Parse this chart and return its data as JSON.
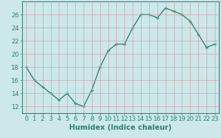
{
  "x": [
    0,
    1,
    2,
    3,
    4,
    5,
    6,
    7,
    8,
    9,
    10,
    11,
    12,
    13,
    14,
    15,
    16,
    17,
    18,
    19,
    20,
    21,
    22,
    23
  ],
  "y": [
    18,
    16,
    15,
    14,
    13,
    14,
    12.5,
    12,
    14.5,
    18,
    20.5,
    21.5,
    21.5,
    24,
    26,
    26,
    25.5,
    27,
    26.5,
    26,
    25,
    23,
    21,
    21.5
  ],
  "line_color": "#2e7d6e",
  "marker": "+",
  "marker_color": "#2e7d6e",
  "bg_color": "#cce8eb",
  "grid_color": "#b0d4d8",
  "xlabel": "Humidex (Indice chaleur)",
  "xlim": [
    -0.5,
    23.5
  ],
  "ylim": [
    11,
    28
  ],
  "yticks": [
    12,
    14,
    16,
    18,
    20,
    22,
    24,
    26
  ],
  "xticks": [
    0,
    1,
    2,
    3,
    4,
    5,
    6,
    7,
    8,
    9,
    10,
    11,
    12,
    13,
    14,
    15,
    16,
    17,
    18,
    19,
    20,
    21,
    22,
    23
  ],
  "xlabel_fontsize": 7.5,
  "tick_fontsize": 6.5,
  "line_width": 1.0,
  "marker_size": 3.5
}
